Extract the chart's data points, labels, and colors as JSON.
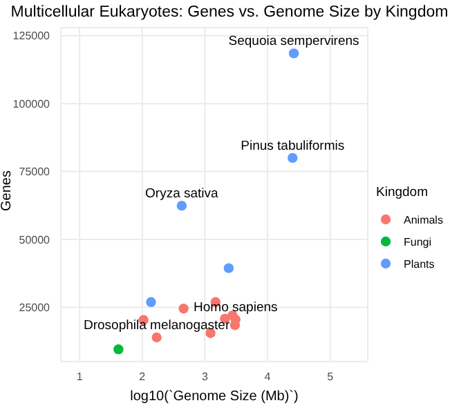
{
  "chart_data": {
    "type": "scatter",
    "title": "Multicellular Eukaryotes: Genes vs. Genome Size by Kingdom",
    "xlabel": "log10(`Genome Size (Mb)`)",
    "ylabel": "Genes",
    "legend_title": "Kingdom",
    "xlim": [
      0.7,
      5.6
    ],
    "xticks": [
      1,
      2,
      3,
      4,
      5
    ],
    "ylim": [
      5000,
      128000
    ],
    "yticks": [
      25000,
      50000,
      75000,
      100000,
      125000
    ],
    "grid": true,
    "legend": "right",
    "marker": "circle",
    "series": [
      {
        "name": "Animals",
        "color": "#f8766d",
        "x": [
          3.17,
          2.66,
          2.02,
          3.32,
          3.44,
          3.49,
          3.48,
          3.09,
          2.23
        ],
        "values": [
          26900,
          24500,
          20300,
          20800,
          22000,
          20500,
          18400,
          15500,
          13900
        ]
      },
      {
        "name": "Fungi",
        "color": "#00ba38",
        "x": [
          1.62
        ],
        "values": [
          9500
        ]
      },
      {
        "name": "Plants",
        "color": "#619cff",
        "x": [
          4.42,
          4.4,
          2.63,
          3.38,
          2.14
        ],
        "values": [
          118500,
          80000,
          62400,
          39400,
          26900
        ]
      }
    ],
    "annotations": [
      {
        "text": "Sequoia sempervirens",
        "x": 4.42,
        "y": 118500
      },
      {
        "text": "Pinus tabuliformis",
        "x": 4.4,
        "y": 80000
      },
      {
        "text": "Oryza sativa",
        "x": 2.63,
        "y": 62400
      },
      {
        "text": "Homo sapiens",
        "x": 3.49,
        "y": 20500
      },
      {
        "text": "Drosophila melanogaster",
        "x": 2.23,
        "y": 13900
      }
    ]
  }
}
